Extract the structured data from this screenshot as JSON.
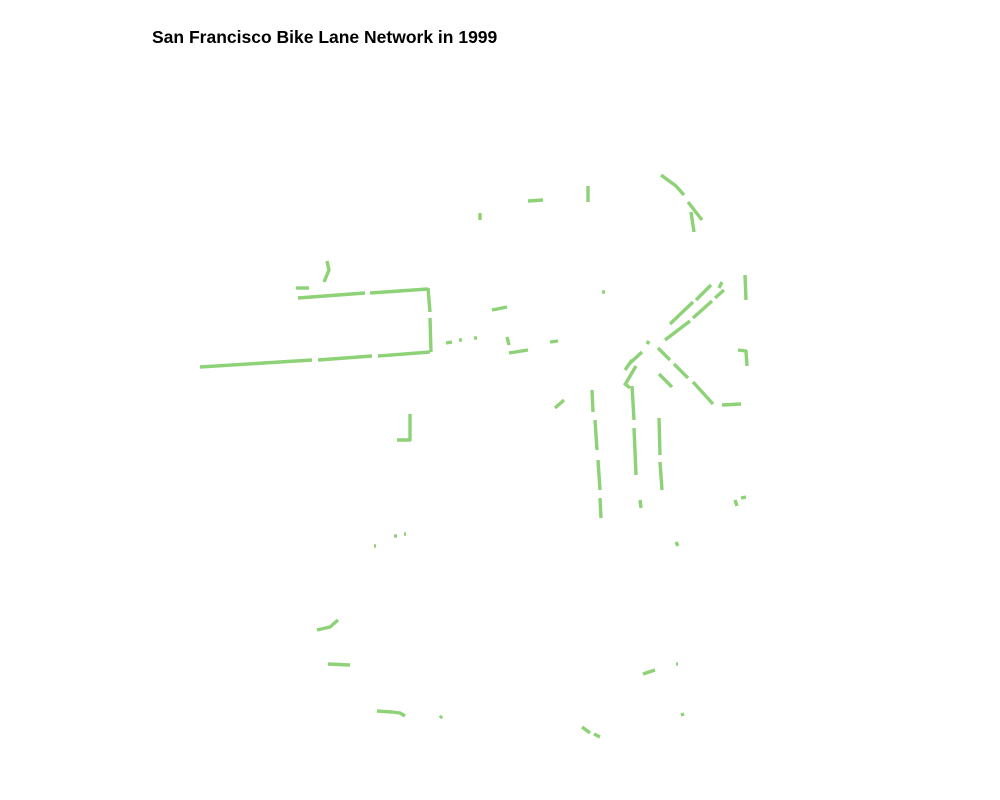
{
  "title": "San Francisco Bike Lane Network in 1999",
  "map": {
    "year": "1999",
    "lane_color": "#8dd276",
    "background": "#ffffff"
  }
}
